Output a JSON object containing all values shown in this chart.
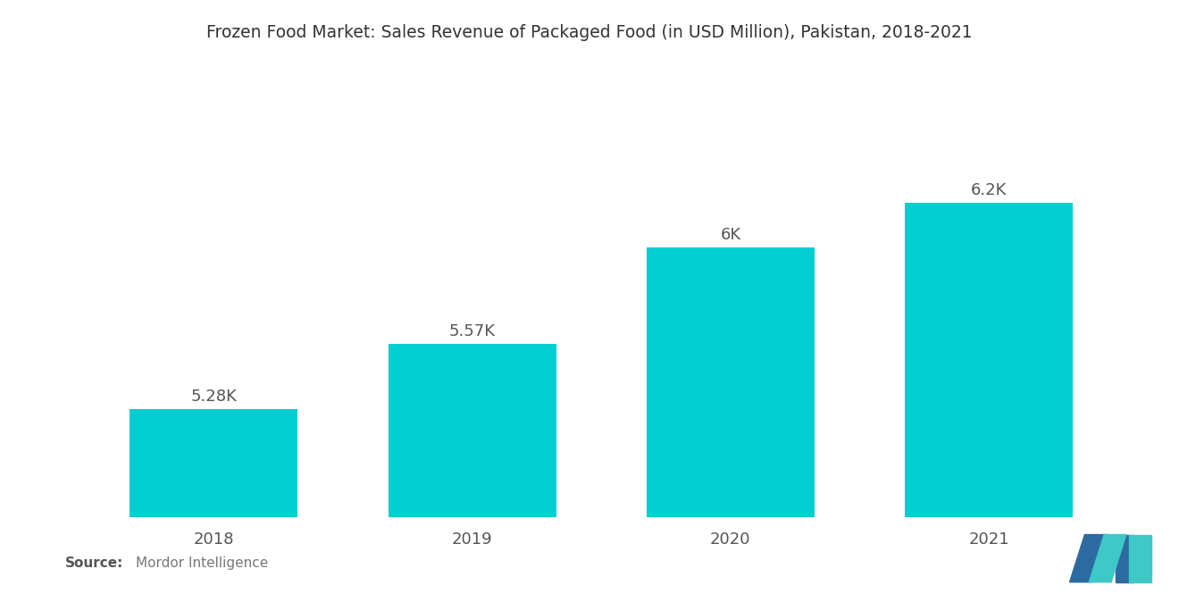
{
  "title": "Frozen Food Market: Sales Revenue of Packaged Food (in USD Million), Pakistan, 2018-2021",
  "categories": [
    "2018",
    "2019",
    "2020",
    "2021"
  ],
  "values": [
    5280,
    5570,
    6000,
    6200
  ],
  "labels": [
    "5.28K",
    "5.57K",
    "6K",
    "6.2K"
  ],
  "bar_color": "#00CED1",
  "background_color": "#ffffff",
  "title_fontsize": 13.5,
  "label_fontsize": 13,
  "tick_fontsize": 13,
  "ylim": [
    4800,
    6600
  ],
  "bar_width": 0.65,
  "label_color": "#555555",
  "tick_color": "#555555",
  "logo_dark_blue": "#2D6A9F",
  "logo_teal": "#3EC8C8"
}
